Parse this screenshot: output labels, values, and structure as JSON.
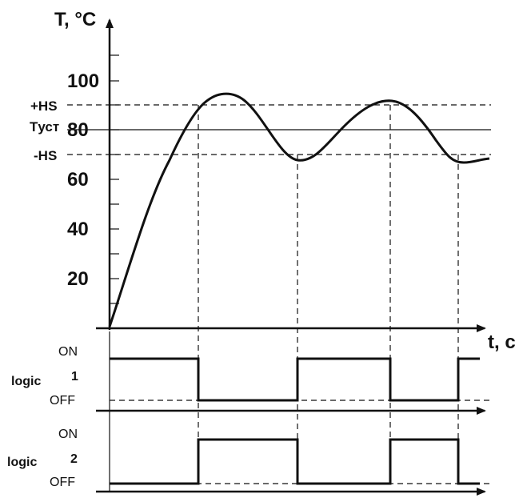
{
  "chart_data": {
    "type": "line",
    "ylabel": "T, °C",
    "xlabel": "t, c",
    "y_ticks": [
      "20",
      "40",
      "60",
      "80",
      "100"
    ],
    "threshold_labels": {
      "plus_hs": "+HS",
      "setpoint": "Tуст",
      "minus_hs": "-HS"
    },
    "ylim": [
      0,
      130
    ],
    "setpoint_value": 80,
    "plus_hs_value": 90,
    "minus_hs_value": 70
  },
  "logic1": {
    "title": "logic",
    "number": "1",
    "on_label": "ON",
    "off_label": "OFF"
  },
  "logic2": {
    "title": "logic",
    "number": "2",
    "on_label": "ON",
    "off_label": "OFF"
  }
}
